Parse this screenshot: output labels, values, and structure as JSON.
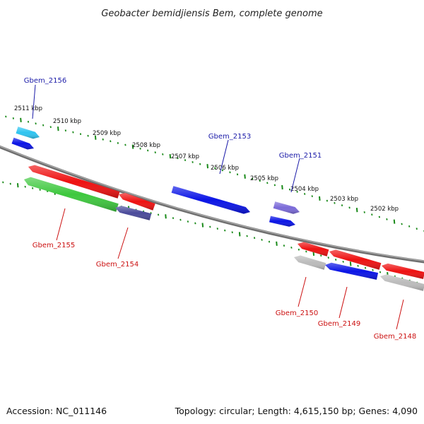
{
  "title": "Geobacter bemidjiensis Bem, complete genome",
  "footer": {
    "accession": "Accession: NC_011146",
    "summary": "Topology: circular; Length: 4,615,150 bp; Genes: 4,090"
  },
  "colors": {
    "backbone": "#888888",
    "tick": "#1a8a1a",
    "forward_label": "#1a1aa8",
    "reverse_label": "#cc1111"
  },
  "kbp_labels": [
    "2511 kbp",
    "2510 kbp",
    "2509 kbp",
    "2508 kbp",
    "2507 kbp",
    "2506 kbp",
    "2505 kbp",
    "2504 kbp",
    "2503 kbp",
    "2502 kbp"
  ],
  "genes": [
    {
      "label": "Gbem_2156",
      "strand": "+",
      "color": "#2ec4f0"
    },
    {
      "label": "Gbem_2153",
      "strand": "+",
      "color": "#0a14e6"
    },
    {
      "label": "Gbem_2151",
      "strand": "+",
      "color": "#7a6ad8"
    },
    {
      "label": "Gbem_2155",
      "strand": "-",
      "color": "#3ec83e"
    },
    {
      "label": "Gbem_2154",
      "strand": "-",
      "color": "#4a4a9a"
    },
    {
      "label": "Gbem_2150",
      "strand": "-",
      "color": "#bbbbbb"
    },
    {
      "label": "Gbem_2149",
      "strand": "-",
      "color": "#0a14e6"
    },
    {
      "label": "Gbem_2148",
      "strand": "-",
      "color": "#bbbbbb"
    }
  ]
}
